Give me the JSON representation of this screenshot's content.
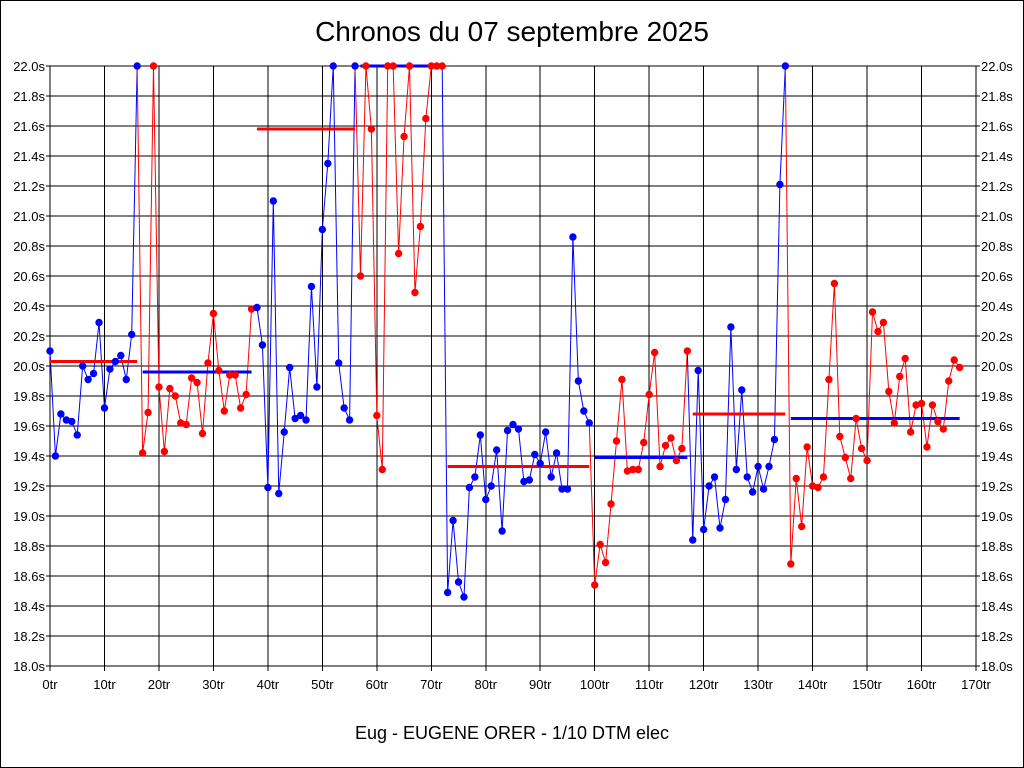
{
  "title": "Chronos du 07 septembre 2025",
  "footer": "Eug - EUGENE ORER - 1/10 DTM elec",
  "chart_data": {
    "type": "line",
    "title": "Chronos du 07 septembre 2025",
    "xlabel": "Eug - EUGENE ORER - 1/10 DTM elec",
    "ylabel": "",
    "xlim": [
      0,
      170
    ],
    "ylim": [
      18.0,
      22.0
    ],
    "grid": true,
    "x_ticks": [
      "0tr",
      "10tr",
      "20tr",
      "30tr",
      "40tr",
      "50tr",
      "60tr",
      "70tr",
      "80tr",
      "90tr",
      "100tr",
      "110tr",
      "120tr",
      "130tr",
      "140tr",
      "150tr",
      "160tr",
      "170tr"
    ],
    "y_ticks": [
      "18.0s",
      "18.2s",
      "18.4s",
      "18.6s",
      "18.8s",
      "19.0s",
      "19.2s",
      "19.4s",
      "19.6s",
      "19.8s",
      "20.0s",
      "20.2s",
      "20.4s",
      "20.6s",
      "20.8s",
      "21.0s",
      "21.2s",
      "21.4s",
      "21.6s",
      "21.8s",
      "22.0s"
    ],
    "colors": {
      "blue": "#0000ff",
      "red": "#ff0000",
      "grid": "#000000"
    },
    "series": [
      {
        "color": "#0000ff",
        "start": 0,
        "values": [
          20.1,
          19.4,
          19.68,
          19.64,
          19.63,
          19.54,
          20.0,
          19.91,
          19.95,
          20.29,
          19.72,
          19.98,
          20.03,
          20.07,
          19.91,
          20.21,
          22.0
        ]
      },
      {
        "color": "#ff0000",
        "start": 17,
        "values": [
          19.42,
          19.69,
          22.0,
          19.86,
          19.43,
          19.85,
          19.8,
          19.62,
          19.61,
          19.92,
          19.89,
          19.55,
          20.02,
          20.35,
          19.97,
          19.7,
          19.94,
          19.94,
          19.72,
          19.81,
          20.38
        ]
      },
      {
        "color": "#0000ff",
        "start": 38,
        "values": [
          20.39,
          20.14,
          19.19,
          21.1,
          19.15,
          19.56,
          19.99,
          19.65,
          19.67,
          19.64,
          20.53,
          19.86,
          20.91,
          21.35,
          22.0,
          20.02,
          19.72,
          19.64,
          22.0
        ]
      },
      {
        "color": "#ff0000",
        "start": 57,
        "values": [
          20.6,
          22.0,
          21.58,
          19.67,
          19.31,
          22.0,
          22.0,
          20.75,
          21.53,
          22.0,
          20.49,
          20.93,
          21.65,
          22.0,
          22.0,
          22.0
        ]
      },
      {
        "color": "#0000ff",
        "start": 73,
        "values": [
          18.49,
          18.97,
          18.56,
          18.46,
          19.19,
          19.26,
          19.54,
          19.11,
          19.2,
          19.44,
          18.9,
          19.57,
          19.61,
          19.58,
          19.23,
          19.24,
          19.41,
          19.35,
          19.56,
          19.26,
          19.42,
          19.18,
          19.18,
          20.86,
          19.9,
          19.7,
          19.62
        ]
      },
      {
        "color": "#ff0000",
        "start": 100,
        "values": [
          18.54,
          18.81,
          18.69,
          19.08,
          19.5,
          19.91,
          19.3,
          19.31,
          19.31,
          19.49,
          19.81,
          20.09,
          19.33,
          19.47,
          19.52,
          19.37,
          19.45,
          20.1
        ]
      },
      {
        "color": "#0000ff",
        "start": 118,
        "values": [
          18.84,
          19.97,
          18.91,
          19.2,
          19.26,
          18.92,
          19.11,
          20.26,
          19.31,
          19.84,
          19.26,
          19.16,
          19.33,
          19.18,
          19.33,
          19.51,
          21.21,
          22.0
        ]
      },
      {
        "color": "#ff0000",
        "start": 136,
        "values": [
          18.68,
          19.25,
          18.93,
          19.46,
          19.2,
          19.19,
          19.26,
          19.91,
          20.55,
          19.53,
          19.39,
          19.25,
          19.65,
          19.45,
          19.37,
          20.36,
          20.23,
          20.29,
          19.83,
          19.62,
          19.93,
          20.05,
          19.56,
          19.74,
          19.75,
          19.46,
          19.74,
          19.63,
          19.58,
          19.9,
          20.04,
          19.99
        ]
      }
    ],
    "averages": [
      {
        "color": "#ff0000",
        "x_start": 0,
        "x_end": 16,
        "value": 20.03
      },
      {
        "color": "#0000ff",
        "x_start": 17,
        "x_end": 37,
        "value": 19.96
      },
      {
        "color": "#ff0000",
        "x_start": 38,
        "x_end": 56,
        "value": 21.58
      },
      {
        "color": "#0000ff",
        "x_start": 57,
        "x_end": 72,
        "value": 22.0
      },
      {
        "color": "#ff0000",
        "x_start": 73,
        "x_end": 99,
        "value": 19.33
      },
      {
        "color": "#0000ff",
        "x_start": 100,
        "x_end": 117,
        "value": 19.39
      },
      {
        "color": "#ff0000",
        "x_start": 118,
        "x_end": 135,
        "value": 19.68
      },
      {
        "color": "#0000ff",
        "x_start": 136,
        "x_end": 167,
        "value": 19.65
      }
    ]
  }
}
